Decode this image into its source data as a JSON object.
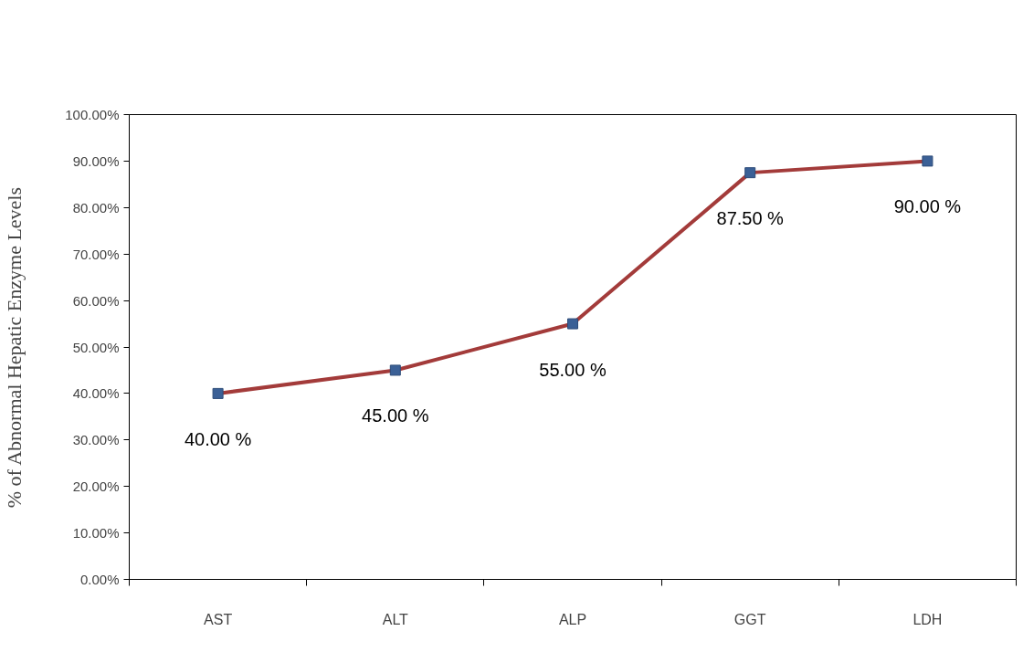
{
  "chart_data": {
    "type": "line",
    "ylabel": "% of Abnormal Hepatic Enzyme Levels",
    "categories": [
      "AST",
      "ALT",
      "ALP",
      "GGT",
      "LDH"
    ],
    "series": [
      {
        "color": "#a33b3a",
        "values": [
          40,
          45,
          55,
          87.5,
          90
        ],
        "value_labels": [
          "40.00 %",
          "45.00 %",
          "55.00 %",
          "87.50 %",
          "90.00 %"
        ]
      }
    ],
    "ylim": [
      0,
      100
    ],
    "yticks": [
      {
        "value": 0,
        "label": "0.00%"
      },
      {
        "value": 10,
        "label": "10.00%"
      },
      {
        "value": 20,
        "label": "20.00%"
      },
      {
        "value": 30,
        "label": "30.00%"
      },
      {
        "value": 40,
        "label": "40.00%"
      },
      {
        "value": 50,
        "label": "50.00%"
      },
      {
        "value": 60,
        "label": "60.00%"
      },
      {
        "value": 70,
        "label": "70.00%"
      },
      {
        "value": 80,
        "label": "80.00%"
      },
      {
        "value": 90,
        "label": "90.00%"
      },
      {
        "value": 100,
        "label": "100.00%"
      }
    ],
    "marker": "square",
    "grid": false
  }
}
